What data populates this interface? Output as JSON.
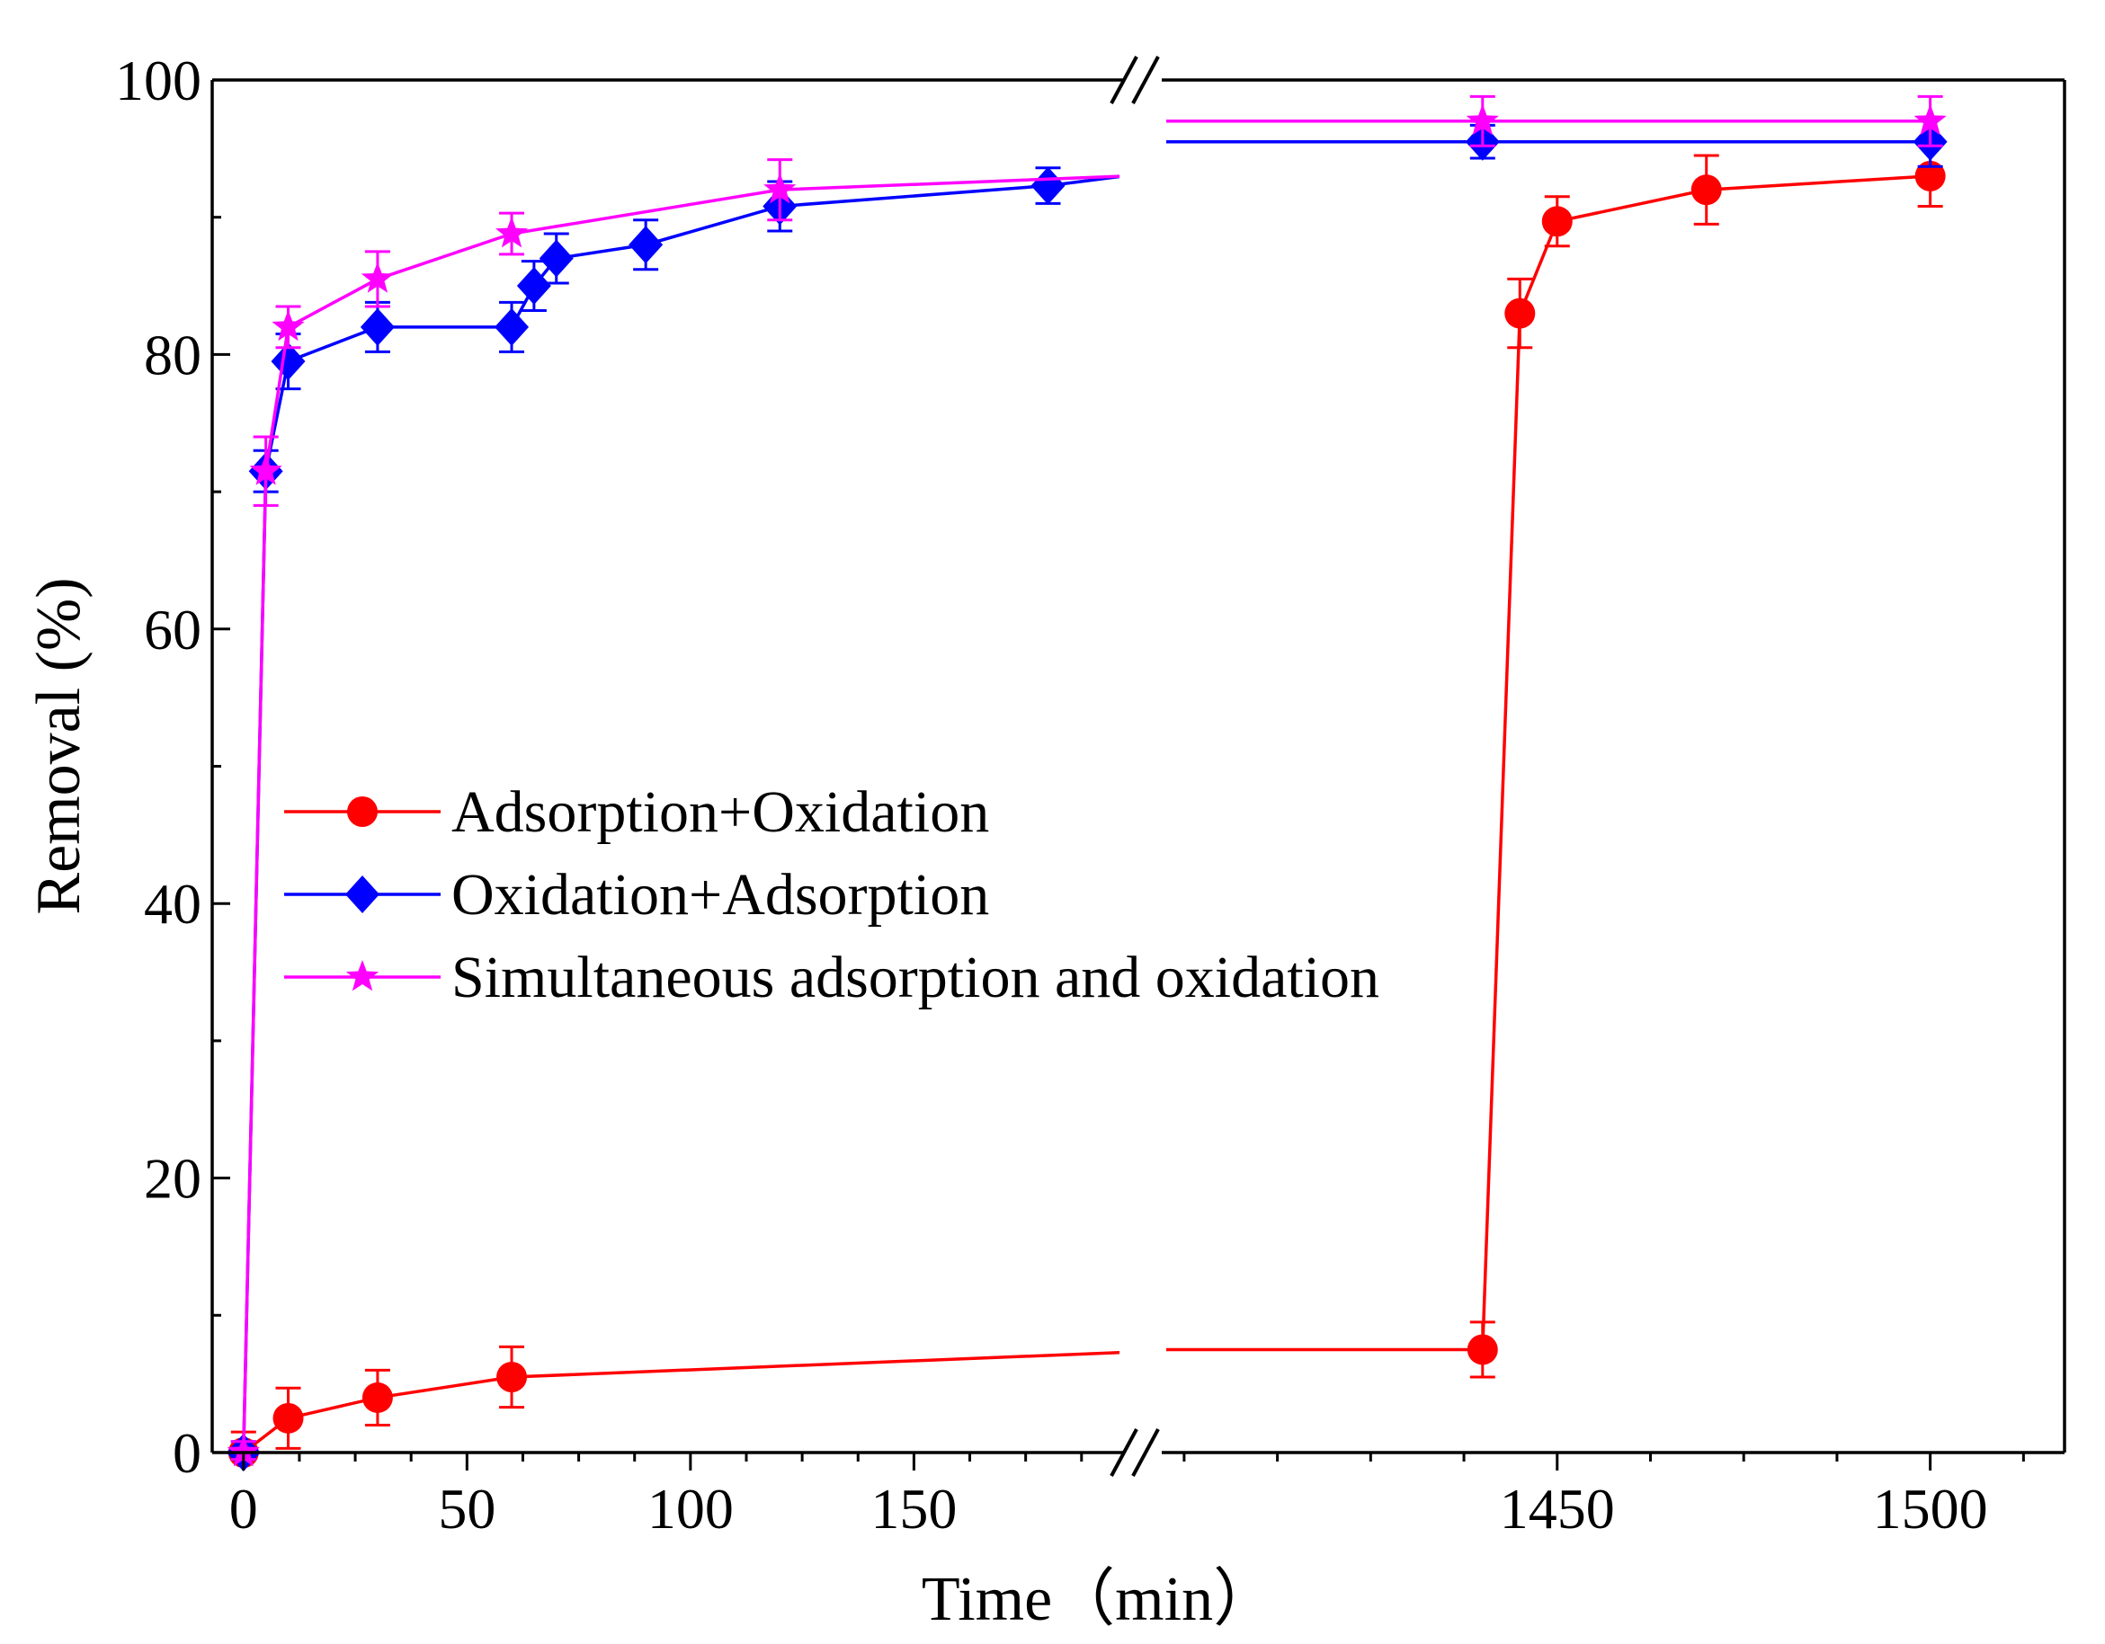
{
  "chart_data": {
    "type": "line",
    "title": "",
    "xlabel": "Time（min）",
    "ylabel": "Removal (%)",
    "ylim": [
      0,
      100
    ],
    "x_segments": [
      {
        "xlim": [
          -7,
          197
        ],
        "ticks": [
          0,
          50,
          100,
          150
        ],
        "tick_labels": [
          "0",
          "50",
          "100",
          "150"
        ]
      },
      {
        "xlim": [
          1397,
          1518
        ],
        "ticks": [
          1450,
          1500
        ],
        "tick_labels": [
          "1450",
          "1500"
        ]
      }
    ],
    "y_ticks": [
      0,
      20,
      40,
      60,
      80,
      100
    ],
    "y_tick_labels": [
      "0",
      "20",
      "40",
      "60",
      "80",
      "100"
    ],
    "axis_break": "//",
    "legend_position": "center-left",
    "series": [
      {
        "name": "Adsorption+Oxidation",
        "color": "#ff0000",
        "marker": "circle",
        "points": [
          {
            "x": 0,
            "y": 0,
            "err": 1.5
          },
          {
            "x": 10,
            "y": 2.5,
            "err": 2.2
          },
          {
            "x": 30,
            "y": 4,
            "err": 2
          },
          {
            "x": 60,
            "y": 5.5,
            "err": 2.2
          },
          {
            "x": 1440,
            "y": 7.5,
            "err": 2
          },
          {
            "x": 1445,
            "y": 83,
            "err": 2.5
          },
          {
            "x": 1450,
            "y": 89.7,
            "err": 1.8
          },
          {
            "x": 1470,
            "y": 92,
            "err": 2.5
          },
          {
            "x": 1500,
            "y": 93,
            "err": 2.2
          }
        ]
      },
      {
        "name": "Oxidation+Adsorption",
        "color": "#0000ff",
        "marker": "diamond",
        "points": [
          {
            "x": 0,
            "y": 0,
            "err": 0.8
          },
          {
            "x": 5,
            "y": 71.5,
            "err": 1.5
          },
          {
            "x": 10,
            "y": 79.5,
            "err": 2
          },
          {
            "x": 30,
            "y": 82,
            "err": 1.8
          },
          {
            "x": 60,
            "y": 82,
            "err": 1.8
          },
          {
            "x": 65,
            "y": 85,
            "err": 1.8
          },
          {
            "x": 70,
            "y": 87,
            "err": 1.8
          },
          {
            "x": 90,
            "y": 88,
            "err": 1.8
          },
          {
            "x": 120,
            "y": 90.8,
            "err": 1.8
          },
          {
            "x": 180,
            "y": 92.3,
            "err": 1.3
          },
          {
            "x": 1440,
            "y": 95.5,
            "err": 1.2
          },
          {
            "x": 1500,
            "y": 95.5,
            "err": 1.8
          }
        ]
      },
      {
        "name": "Simultaneous adsorption and oxidation",
        "color": "#ff00ff",
        "marker": "star",
        "points": [
          {
            "x": 0,
            "y": 0,
            "err": 0.8
          },
          {
            "x": 5,
            "y": 71.5,
            "err": 2.5
          },
          {
            "x": 10,
            "y": 82,
            "err": 1.5
          },
          {
            "x": 30,
            "y": 85.5,
            "err": 2
          },
          {
            "x": 60,
            "y": 88.8,
            "err": 1.5
          },
          {
            "x": 120,
            "y": 92,
            "err": 2.2
          },
          {
            "x": 1440,
            "y": 97,
            "err": 1.8
          },
          {
            "x": 1500,
            "y": 97,
            "err": 1.8
          }
        ]
      }
    ]
  }
}
